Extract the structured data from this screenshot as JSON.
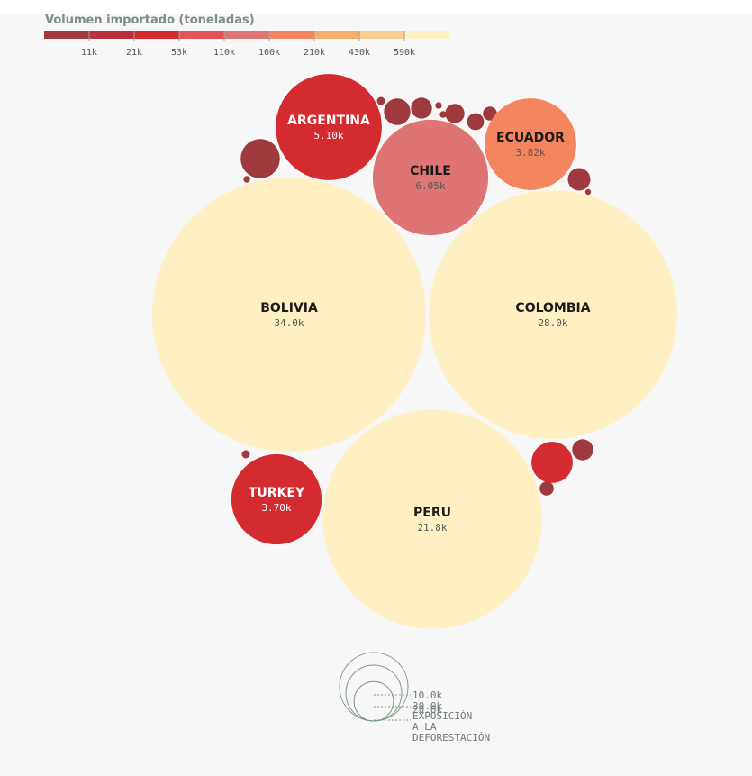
{
  "legend": {
    "title": "Volumen importado (toneladas)",
    "colors": [
      "#9e3a3e",
      "#b8333b",
      "#d42b30",
      "#e35358",
      "#de7574",
      "#f4865f",
      "#f5ae6c",
      "#f7cf93",
      "#fff0c4"
    ],
    "ticks": [
      "11k",
      "21k",
      "53k",
      "110k",
      "160k",
      "210k",
      "430k",
      "590k"
    ]
  },
  "size_legend": {
    "labels": [
      "10.0k",
      "30.0k",
      "20.0k"
    ],
    "caption": [
      "EXPOSICIÓN",
      "A LA",
      "DEFORESTACIÓN"
    ]
  },
  "chart_data": {
    "type": "packed-bubble",
    "title": "",
    "size_measure": "exposición a la deforestación",
    "color_measure": "Volumen importado (toneladas)",
    "labeled": [
      {
        "name": "BOLIVIA",
        "value_label": "34.0k",
        "value": 34000,
        "color": "#fff0c4"
      },
      {
        "name": "COLOMBIA",
        "value_label": "28.0k",
        "value": 28000,
        "color": "#fff0c4"
      },
      {
        "name": "PERU",
        "value_label": "21.8k",
        "value": 21800,
        "color": "#fff0c4"
      },
      {
        "name": "CHILE",
        "value_label": "6.05k",
        "value": 6050,
        "color": "#de7574"
      },
      {
        "name": "ARGENTINA",
        "value_label": "5.10k",
        "value": 5100,
        "color": "#d42b30"
      },
      {
        "name": "ECUADOR",
        "value_label": "3.82k",
        "value": 3820,
        "color": "#f4865f"
      },
      {
        "name": "TURKEY",
        "value_label": "3.70k",
        "value": 3700,
        "color": "#d42b30"
      }
    ],
    "unlabeled": [
      {
        "value": 700,
        "color": "#9e3a3e"
      },
      {
        "value": 320,
        "color": "#9e3a3e"
      },
      {
        "value": 200,
        "color": "#9e3a3e"
      },
      {
        "value": 170,
        "color": "#9e3a3e"
      },
      {
        "value": 130,
        "color": "#9e3a3e"
      },
      {
        "value": 230,
        "color": "#9e3a3e"
      },
      {
        "value": 90,
        "color": "#9e3a3e"
      },
      {
        "value": 770,
        "color": "#d42b30"
      },
      {
        "value": 200,
        "color": "#9e3a3e"
      },
      {
        "value": 90,
        "color": "#9e3a3e"
      },
      {
        "value": 20,
        "color": "#9e3a3e"
      },
      {
        "value": 30,
        "color": "#9e3a3e"
      },
      {
        "value": 20,
        "color": "#9e3a3e"
      },
      {
        "value": 20,
        "color": "#9e3a3e"
      },
      {
        "value": 15,
        "color": "#9e3a3e"
      },
      {
        "value": 30,
        "color": "#9e3a3e"
      }
    ]
  }
}
